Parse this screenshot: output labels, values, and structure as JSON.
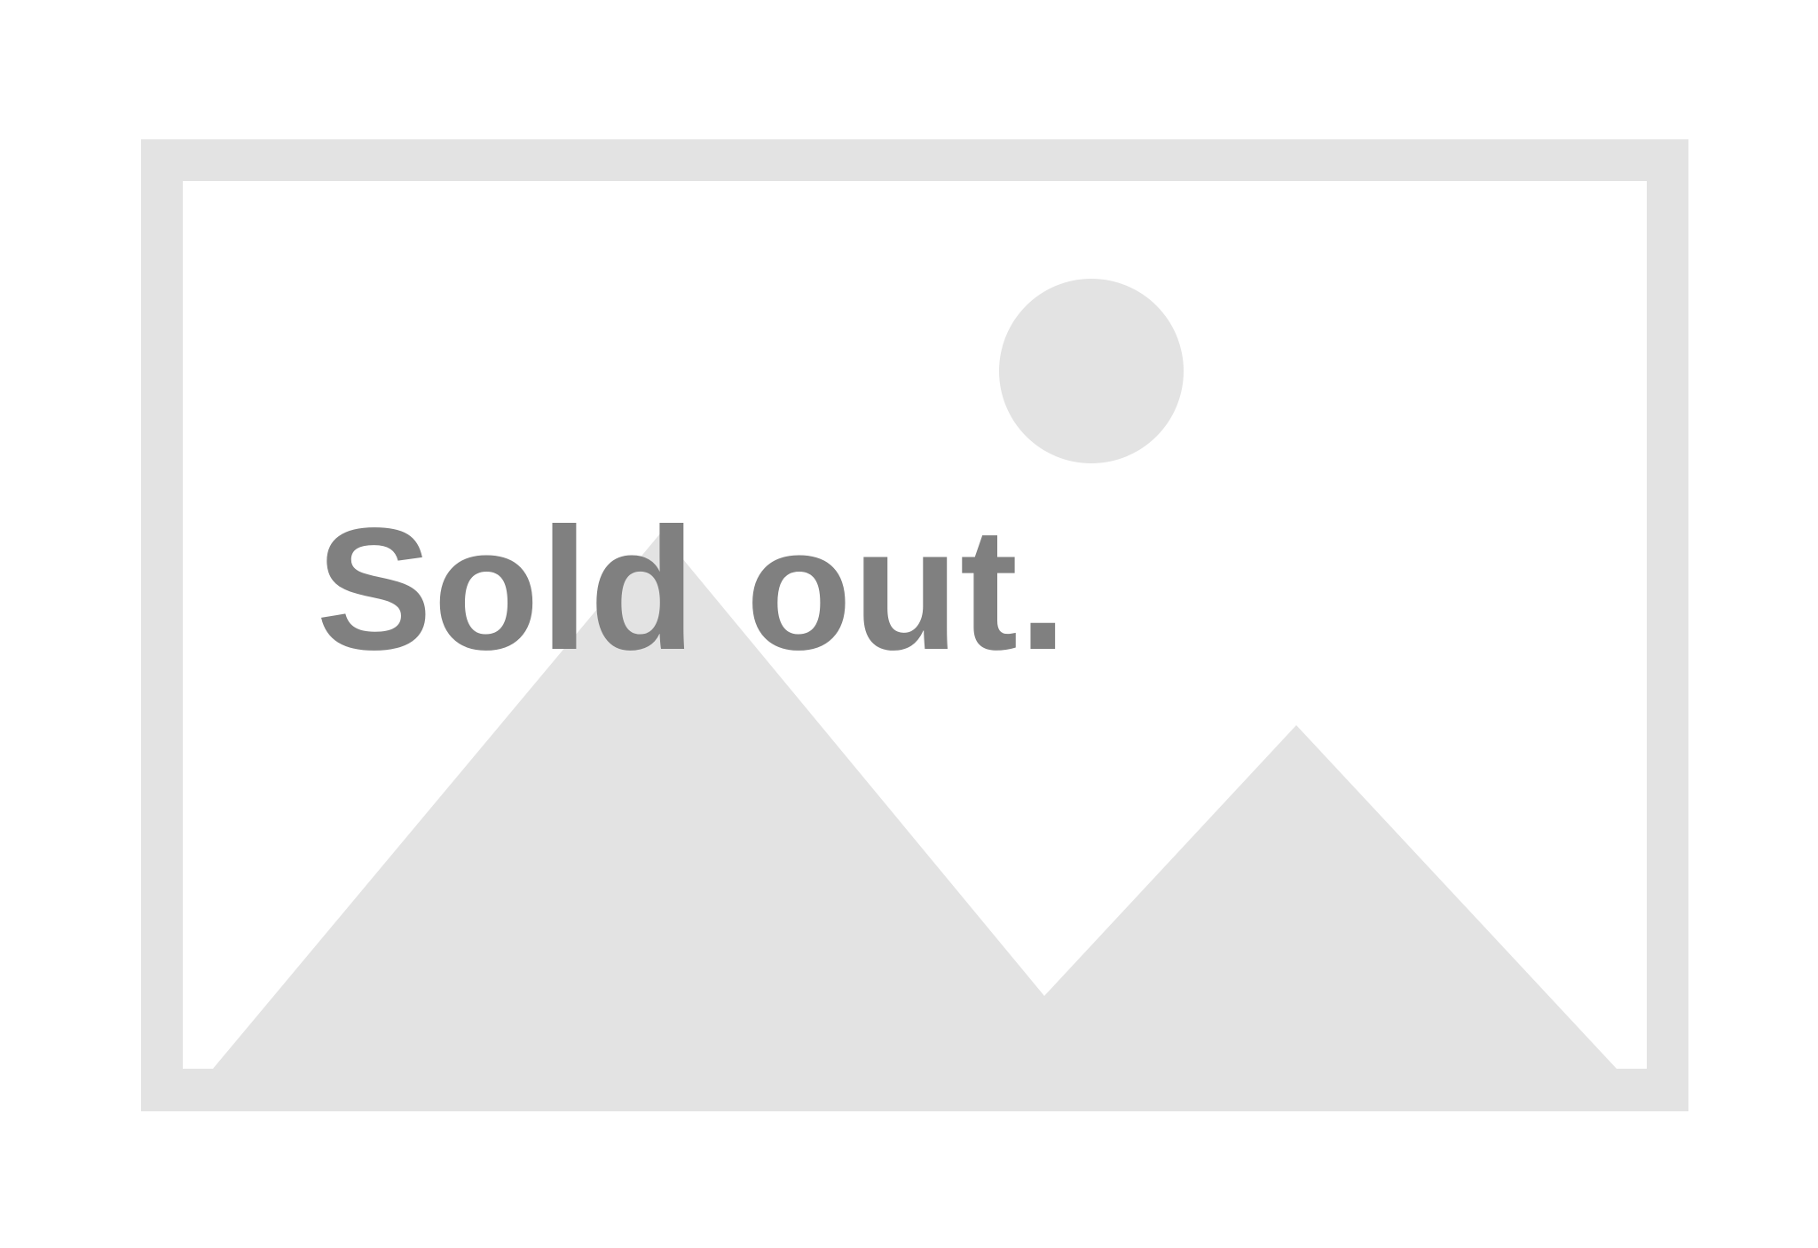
{
  "status_text": "Sold out.",
  "placeholder_icon": "image-placeholder-icon",
  "colors": {
    "background": "#ffffff",
    "placeholder": "#e3e3e3",
    "status_text": "#808080"
  }
}
